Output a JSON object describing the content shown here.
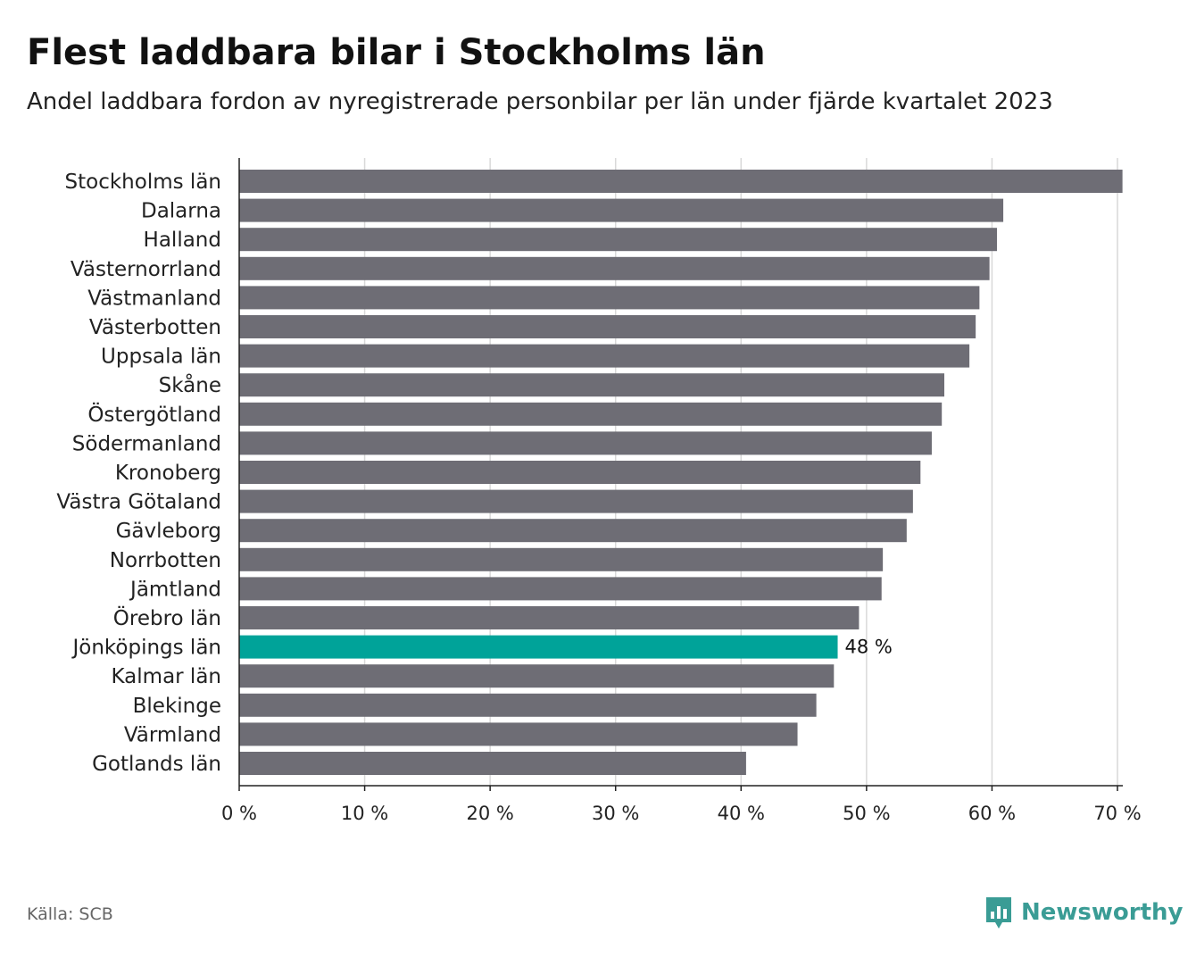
{
  "chart_data": {
    "type": "bar",
    "orientation": "horizontal",
    "title": "Flest laddbara bilar i Stockholms län",
    "subtitle": "Andel laddbara fordon av nyregistrerade personbilar per län under fjärde kvartalet 2023",
    "categories": [
      "Stockholms län",
      "Dalarna",
      "Halland",
      "Västernorrland",
      "Västmanland",
      "Västerbotten",
      "Uppsala län",
      "Skåne",
      "Östergötland",
      "Södermanland",
      "Kronoberg",
      "Västra Götaland",
      "Gävleborg",
      "Norrbotten",
      "Jämtland",
      "Örebro län",
      "Jönköpings län",
      "Kalmar län",
      "Blekinge",
      "Värmland",
      "Gotlands län"
    ],
    "values": [
      70.4,
      60.9,
      60.4,
      59.8,
      59.0,
      58.7,
      58.2,
      56.2,
      56.0,
      55.2,
      54.3,
      53.7,
      53.2,
      51.3,
      51.2,
      49.4,
      47.7,
      47.4,
      46.0,
      44.5,
      40.4
    ],
    "highlight_index": 16,
    "highlight_label": "48 %",
    "xlim": [
      0,
      70
    ],
    "xticks": [
      0,
      10,
      20,
      30,
      40,
      50,
      60,
      70
    ],
    "xtick_labels": [
      "0 %",
      "10 %",
      "20 %",
      "30 %",
      "40 %",
      "50 %",
      "60 %",
      "70 %"
    ],
    "grid": true,
    "xlabel": "",
    "ylabel": ""
  },
  "colors": {
    "bar": "#6e6d75",
    "highlight": "#00a399",
    "grid": "#d9d9d9",
    "axis": "#222222",
    "brand": "#3a9c95"
  },
  "footer": {
    "source": "Källa: SCB",
    "brand": "Newsworthy",
    "brand_icon": "newsworthy-logo-icon"
  }
}
